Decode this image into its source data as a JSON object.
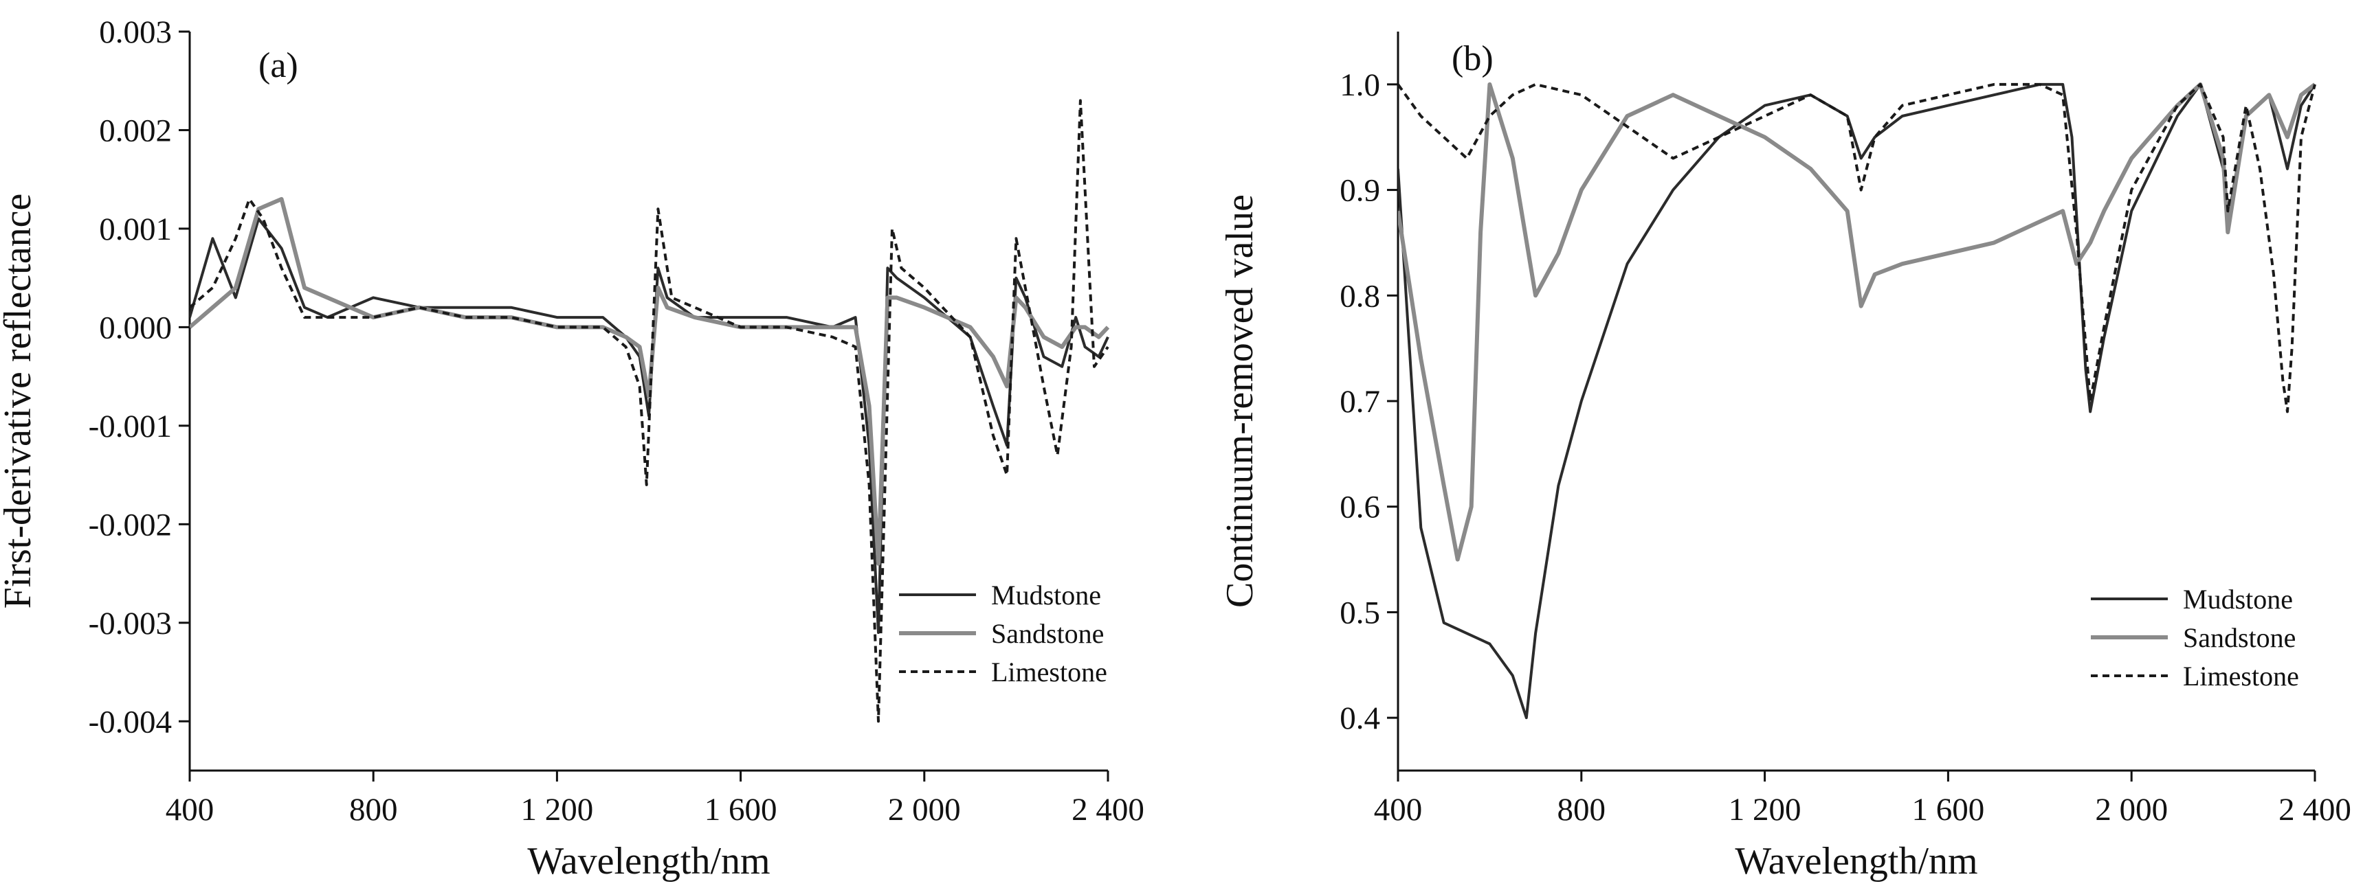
{
  "figure": {
    "colors": {
      "mudstone": "#2b2b2b",
      "sandstone": "#8a8a8a",
      "limestone": "#1a1a1a"
    }
  },
  "chart_data": [
    {
      "type": "line",
      "panel_label": "(a)",
      "xlabel": "Wavelength/nm",
      "ylabel": "First-derivative reflectance",
      "xlim": [
        400,
        2400
      ],
      "ylim": [
        -0.0045,
        0.003
      ],
      "xticks": [
        400,
        800,
        1200,
        1600,
        2000,
        2400
      ],
      "xtick_labels": [
        "400",
        "800",
        "1 200",
        "1 600",
        "2 000",
        "2 400"
      ],
      "yticks": [
        -0.004,
        -0.003,
        -0.002,
        -0.001,
        0.0,
        0.001,
        0.002,
        0.003
      ],
      "ytick_labels": [
        "-0.004",
        "-0.003",
        "-0.002",
        "-0.001",
        "0.000",
        "0.001",
        "0.002",
        "0.003"
      ],
      "grid": false,
      "legend": {
        "position": "bottom-right",
        "entries": [
          "Mudstone",
          "Sandstone",
          "Limestone"
        ]
      },
      "series": [
        {
          "name": "Mudstone",
          "color": "#2b2b2b",
          "dash": "solid",
          "x": [
            400,
            450,
            500,
            550,
            600,
            650,
            700,
            750,
            800,
            900,
            1000,
            1100,
            1200,
            1300,
            1350,
            1380,
            1400,
            1420,
            1440,
            1500,
            1600,
            1700,
            1800,
            1850,
            1880,
            1900,
            1920,
            1940,
            2000,
            2100,
            2150,
            2180,
            2200,
            2220,
            2260,
            2300,
            2330,
            2350,
            2380,
            2400
          ],
          "values": [
            0.0001,
            0.0009,
            0.0003,
            0.0011,
            0.0008,
            0.0002,
            0.0001,
            0.0002,
            0.0003,
            0.0002,
            0.0002,
            0.0002,
            0.0001,
            0.0001,
            -0.0001,
            -0.0003,
            -0.0009,
            0.0006,
            0.0003,
            0.0001,
            0.0001,
            0.0001,
            0.0,
            0.0001,
            -0.0012,
            -0.0031,
            0.0006,
            0.0005,
            0.0003,
            -0.0001,
            -0.0008,
            -0.0012,
            0.0005,
            0.0003,
            -0.0003,
            -0.0004,
            0.0001,
            -0.0002,
            -0.0003,
            -0.0001
          ]
        },
        {
          "name": "Sandstone",
          "color": "#8a8a8a",
          "dash": "solid",
          "x": [
            400,
            450,
            500,
            550,
            600,
            650,
            700,
            750,
            800,
            900,
            1000,
            1100,
            1200,
            1300,
            1350,
            1380,
            1400,
            1420,
            1440,
            1500,
            1600,
            1700,
            1800,
            1850,
            1880,
            1900,
            1920,
            1940,
            2000,
            2100,
            2150,
            2180,
            2200,
            2220,
            2260,
            2300,
            2330,
            2350,
            2380,
            2400
          ],
          "values": [
            0.0,
            0.0002,
            0.0004,
            0.0012,
            0.0013,
            0.0004,
            0.0003,
            0.0002,
            0.0001,
            0.0002,
            0.0001,
            0.0001,
            0.0,
            0.0,
            -0.0001,
            -0.0002,
            -0.0007,
            0.0004,
            0.0002,
            0.0001,
            0.0,
            0.0,
            0.0,
            0.0,
            -0.0008,
            -0.0024,
            0.0003,
            0.0003,
            0.0002,
            0.0,
            -0.0003,
            -0.0006,
            0.0003,
            0.0002,
            -0.0001,
            -0.0002,
            0.0,
            0.0,
            -0.0001,
            0.0
          ]
        },
        {
          "name": "Limestone",
          "color": "#1a1a1a",
          "dash": "dashed",
          "x": [
            400,
            450,
            500,
            530,
            560,
            600,
            650,
            700,
            800,
            900,
            1000,
            1100,
            1200,
            1300,
            1350,
            1380,
            1395,
            1420,
            1450,
            1500,
            1600,
            1700,
            1800,
            1850,
            1880,
            1900,
            1930,
            1950,
            2000,
            2100,
            2150,
            2180,
            2200,
            2220,
            2260,
            2290,
            2320,
            2340,
            2350,
            2370,
            2400
          ],
          "values": [
            0.0002,
            0.0004,
            0.0009,
            0.0013,
            0.0011,
            0.0006,
            0.0001,
            0.0001,
            0.0001,
            0.0002,
            0.0001,
            0.0001,
            0.0,
            0.0,
            -0.0002,
            -0.0006,
            -0.0016,
            0.0012,
            0.0003,
            0.0002,
            0.0,
            0.0,
            -0.0001,
            -0.0002,
            -0.0016,
            -0.004,
            0.001,
            0.0006,
            0.0004,
            -0.0001,
            -0.0011,
            -0.0015,
            0.0009,
            0.0004,
            -0.0006,
            -0.0013,
            -0.0002,
            0.0023,
            0.0014,
            -0.0004,
            -0.0002
          ]
        }
      ]
    },
    {
      "type": "line",
      "panel_label": "(b)",
      "xlabel": "Wavelength/nm",
      "ylabel": "Continuum-removed value",
      "xlim": [
        400,
        2400
      ],
      "ylim": [
        0.35,
        1.05
      ],
      "xticks": [
        400,
        800,
        1200,
        1600,
        2000,
        2400
      ],
      "xtick_labels": [
        "400",
        "800",
        "1 200",
        "1 600",
        "2 000",
        "2 400"
      ],
      "yticks": [
        0.4,
        0.5,
        0.6,
        0.7,
        0.8,
        0.9,
        1.0
      ],
      "ytick_labels": [
        "0.4",
        "0.5",
        "0.6",
        "0.7",
        "0.8",
        "0.9",
        "1.0"
      ],
      "grid": false,
      "legend": {
        "position": "bottom-right",
        "entries": [
          "Mudstone",
          "Sandstone",
          "Limestone"
        ]
      },
      "series": [
        {
          "name": "Mudstone",
          "color": "#2b2b2b",
          "dash": "solid",
          "x": [
            400,
            450,
            500,
            550,
            600,
            650,
            680,
            700,
            750,
            800,
            900,
            1000,
            1100,
            1200,
            1300,
            1380,
            1410,
            1440,
            1500,
            1600,
            1700,
            1800,
            1850,
            1870,
            1900,
            1910,
            1940,
            2000,
            2100,
            2150,
            2200,
            2210,
            2250,
            2300,
            2340,
            2370,
            2400
          ],
          "values": [
            0.92,
            0.58,
            0.49,
            0.48,
            0.47,
            0.44,
            0.4,
            0.48,
            0.62,
            0.7,
            0.83,
            0.9,
            0.95,
            0.98,
            0.99,
            0.97,
            0.93,
            0.95,
            0.97,
            0.98,
            0.99,
            1.0,
            1.0,
            0.95,
            0.73,
            0.69,
            0.76,
            0.88,
            0.97,
            1.0,
            0.92,
            0.87,
            0.97,
            0.99,
            0.92,
            0.98,
            1.0
          ]
        },
        {
          "name": "Sandstone",
          "color": "#8a8a8a",
          "dash": "solid",
          "x": [
            400,
            450,
            500,
            530,
            560,
            580,
            600,
            650,
            700,
            750,
            800,
            900,
            1000,
            1100,
            1200,
            1300,
            1380,
            1410,
            1440,
            1500,
            1600,
            1700,
            1800,
            1850,
            1880,
            1910,
            1940,
            2000,
            2100,
            2150,
            2200,
            2210,
            2250,
            2300,
            2340,
            2370,
            2400
          ],
          "values": [
            0.88,
            0.74,
            0.62,
            0.55,
            0.6,
            0.86,
            1.0,
            0.93,
            0.8,
            0.84,
            0.9,
            0.97,
            0.99,
            0.97,
            0.95,
            0.92,
            0.88,
            0.79,
            0.82,
            0.83,
            0.84,
            0.85,
            0.87,
            0.88,
            0.83,
            0.85,
            0.88,
            0.93,
            0.98,
            1.0,
            0.93,
            0.86,
            0.97,
            0.99,
            0.95,
            0.99,
            1.0
          ]
        },
        {
          "name": "Limestone",
          "color": "#1a1a1a",
          "dash": "dashed",
          "x": [
            400,
            450,
            500,
            550,
            600,
            650,
            700,
            800,
            900,
            1000,
            1100,
            1200,
            1300,
            1380,
            1410,
            1440,
            1500,
            1600,
            1700,
            1800,
            1850,
            1880,
            1910,
            1940,
            2000,
            2100,
            2150,
            2200,
            2210,
            2250,
            2280,
            2310,
            2330,
            2340,
            2350,
            2370,
            2400
          ],
          "values": [
            1.0,
            0.97,
            0.95,
            0.93,
            0.97,
            0.99,
            1.0,
            0.99,
            0.96,
            0.93,
            0.95,
            0.97,
            0.99,
            0.97,
            0.9,
            0.95,
            0.98,
            0.99,
            1.0,
            1.0,
            0.99,
            0.86,
            0.7,
            0.77,
            0.9,
            0.98,
            1.0,
            0.95,
            0.88,
            0.98,
            0.92,
            0.82,
            0.72,
            0.69,
            0.75,
            0.95,
            1.0
          ]
        }
      ]
    }
  ]
}
